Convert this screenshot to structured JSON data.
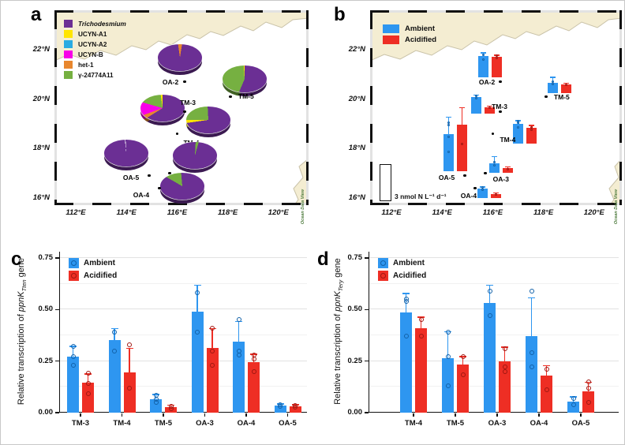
{
  "colors": {
    "taxa": {
      "Trichodesmium": "#6B2F94",
      "UCYN-A1": "#FFE500",
      "UCYN-A2": "#29ABE2",
      "UCYN-B": "#F800E8",
      "het-1": "#E8872E",
      "γ-24774A11": "#76B041",
      "gap": "#FFFFFF"
    },
    "ambient": "#2E96F0",
    "acidified": "#EE2E24",
    "ambient_dark": "#1261A8",
    "acidified_dark": "#9E1712",
    "land": "#F4EDD2",
    "coast": "#C9C2A8",
    "odv_text": "#4C7A3B"
  },
  "chart_data": [
    {
      "type": "map-pie",
      "panel_label": "a",
      "x_ticks": [
        "112°E",
        "114°E",
        "116°E",
        "118°E",
        "120°E"
      ],
      "y_ticks": [
        "22°N",
        "20°N",
        "18°N",
        "16°N"
      ],
      "x_tick_lons": [
        112,
        114,
        116,
        118,
        120
      ],
      "y_tick_lats": [
        22,
        20,
        18,
        16
      ],
      "watermark": "Ocean Data View",
      "legend": [
        {
          "label": "Trichodesmium",
          "taxon": "Trichodesmium",
          "italic": true
        },
        {
          "label": "UCYN-A1",
          "taxon": "UCYN-A1",
          "italic": false
        },
        {
          "label": "UCYN-A2",
          "taxon": "UCYN-A2",
          "italic": false
        },
        {
          "label": "UCYN-B",
          "taxon": "UCYN-B",
          "italic": false
        },
        {
          "label": "het-1",
          "taxon": "het-1",
          "italic": false
        },
        {
          "label": "γ-24774A11",
          "taxon": "γ-24774A11",
          "italic": false
        }
      ],
      "stations": [
        {
          "name": "OA-2",
          "lon": 116.3,
          "lat": 20.7,
          "pie": [
            [
              "het-1",
              0,
              9
            ],
            [
              "Trichodesmium",
              9,
              352
            ],
            [
              "het-1",
              352,
              360
            ]
          ]
        },
        {
          "name": "TM-5",
          "lon": 118.1,
          "lat": 20.1,
          "pie": [
            [
              "Trichodesmium",
              0,
              203
            ],
            [
              "γ-24774A11",
              203,
              356
            ],
            [
              "UCYN-A1",
              356,
              360
            ]
          ]
        },
        {
          "name": "TM-3",
          "lon": 116.3,
          "lat": 19.5,
          "pie": [
            [
              "Trichodesmium",
              0,
              238
            ],
            [
              "het-1",
              238,
              250
            ],
            [
              "UCYN-B",
              250,
              286
            ],
            [
              "γ-24774A11",
              286,
              352
            ],
            [
              "UCYN-A1",
              352,
              360
            ]
          ]
        },
        {
          "name": "TM-4",
          "lon": 116.0,
          "lat": 18.6,
          "pie": [
            [
              "Trichodesmium",
              0,
              262
            ],
            [
              "UCYN-A1",
              262,
              270
            ],
            [
              "γ-24774A11",
              270,
              357
            ],
            [
              "Trichodesmium",
              357,
              360
            ]
          ]
        },
        {
          "name": "OA-5",
          "lon": 114.9,
          "lat": 16.9,
          "pie": [
            [
              "Trichodesmium",
              0,
              354
            ],
            [
              "gap",
              354,
              357
            ],
            [
              "Trichodesmium",
              357,
              360
            ]
          ]
        },
        {
          "name": "OA-3",
          "lon": 115.7,
          "lat": 17.0,
          "pie": [
            [
              "Trichodesmium",
              0,
              3
            ],
            [
              "γ-24774A11",
              3,
              16
            ],
            [
              "Trichodesmium",
              16,
              360
            ]
          ]
        },
        {
          "name": "OA-4",
          "lon": 115.3,
          "lat": 16.4,
          "pie": [
            [
              "Trichodesmium",
              0,
              300
            ],
            [
              "γ-24774A11",
              300,
              355
            ],
            [
              "Trichodesmium",
              355,
              360
            ]
          ]
        }
      ]
    },
    {
      "type": "map-bar",
      "panel_label": "b",
      "x_ticks": [
        "112°E",
        "114°E",
        "116°E",
        "118°E",
        "120°E"
      ],
      "y_ticks": [
        "22°N",
        "20°N",
        "18°N",
        "16°N"
      ],
      "x_tick_lons": [
        112,
        114,
        116,
        118,
        120
      ],
      "y_tick_lats": [
        22,
        20,
        18,
        16
      ],
      "watermark": "Ocean Data View",
      "legend": [
        {
          "label": "Ambient",
          "key": "ambient"
        },
        {
          "label": "Acidified",
          "key": "acidified"
        }
      ],
      "scale_label": "3 nmol N L⁻¹ d⁻¹",
      "scale_value_nmol": 3,
      "unit": "nmol N L⁻¹ d⁻¹",
      "stations": [
        {
          "name": "OA-2",
          "lon": 116.3,
          "lat": 20.7,
          "ambient": {
            "value": 1.8,
            "err_top": 2.1,
            "points": [
              1.5,
              1.9
            ]
          },
          "acidified": {
            "value": 1.7,
            "err_top": 1.9,
            "points": [
              1.6,
              1.8
            ]
          }
        },
        {
          "name": "TM-5",
          "lon": 118.1,
          "lat": 20.1,
          "ambient": {
            "value": 0.9,
            "err_top": 1.4,
            "points": [
              0.8,
              1.0
            ]
          },
          "acidified": {
            "value": 0.75,
            "err_top": 0.9,
            "points": [
              0.7
            ]
          }
        },
        {
          "name": "TM-3",
          "lon": 116.3,
          "lat": 19.5,
          "ambient": {
            "value": 1.45,
            "err_top": 1.65,
            "points": [
              1.3,
              1.5
            ]
          },
          "acidified": {
            "value": 0.55,
            "err_top": 0.7,
            "points": [
              0.5
            ]
          }
        },
        {
          "name": "TM-4",
          "lon": 116.0,
          "lat": 18.6,
          "ambient": {
            "value": 1.7,
            "err_top": 2.0,
            "points": [
              1.4,
              1.8,
              1.9
            ]
          },
          "acidified": {
            "value": 1.35,
            "err_top": 1.6,
            "points": [
              1.2,
              1.4
            ]
          }
        },
        {
          "name": "OA-5",
          "lon": 114.9,
          "lat": 16.9,
          "ambient": {
            "value": 3.1,
            "err_top": 4.6,
            "points": [
              1.6,
              2.9,
              3.9,
              4.1
            ]
          },
          "acidified": {
            "value": 3.9,
            "err_top": 5.4,
            "points": [
              2.3
            ]
          }
        },
        {
          "name": "OA-3",
          "lon": 115.7,
          "lat": 17.0,
          "ambient": {
            "value": 0.8,
            "err_top": 1.4,
            "points": [
              0.6,
              0.9
            ]
          },
          "acidified": {
            "value": 0.35,
            "err_top": 0.5,
            "points": [
              0.3
            ]
          }
        },
        {
          "name": "OA-4",
          "lon": 115.3,
          "lat": 16.4,
          "ambient": {
            "value": 0.8,
            "err_top": 1.0,
            "points": [
              0.7,
              0.9
            ]
          },
          "acidified": {
            "value": 0.35,
            "err_top": 0.5,
            "points": [
              0.3
            ]
          }
        }
      ]
    },
    {
      "type": "bar",
      "panel_label": "c",
      "ylabel": {
        "prefix": "Relative transcription of ",
        "gene": "ppnK",
        "subscript": "Tten",
        "suffix": " gene"
      },
      "categories": [
        "TM-3",
        "TM-4",
        "TM-5",
        "OA-3",
        "OA-4",
        "OA-5"
      ],
      "yticks": [
        "0.00",
        "0.25",
        "0.50",
        "0.75"
      ],
      "ytick_values": [
        0,
        0.25,
        0.5,
        0.75
      ],
      "ylim": [
        0,
        0.78
      ],
      "legend": [
        "Ambient",
        "Acidified"
      ],
      "series": [
        {
          "name": "Ambient",
          "values": [
            0.27,
            0.35,
            0.065,
            0.49,
            0.345,
            0.035
          ],
          "err_top": [
            0.325,
            0.41,
            0.09,
            0.62,
            0.445,
            0.045
          ],
          "points": [
            [
              0.23,
              0.27,
              0.32
            ],
            [
              0.3,
              0.39
            ],
            [
              0.05,
              0.065,
              0.085
            ],
            [
              0.39,
              0.58
            ],
            [
              0.28,
              0.3,
              0.45
            ],
            [
              0.03,
              0.04
            ]
          ]
        },
        {
          "name": "Acidified",
          "values": [
            0.145,
            0.195,
            0.027,
            0.315,
            0.245,
            0.03
          ],
          "err_top": [
            0.19,
            0.315,
            0.04,
            0.41,
            0.285,
            0.042
          ],
          "points": [
            [
              0.09,
              0.14,
              0.19
            ],
            [
              0.12,
              0.33
            ],
            [
              0.02,
              0.03
            ],
            [
              0.23,
              0.3,
              0.41
            ],
            [
              0.2,
              0.26,
              0.28
            ],
            [
              0.025,
              0.035
            ]
          ]
        }
      ]
    },
    {
      "type": "bar",
      "panel_label": "d",
      "ylabel": {
        "prefix": "Relative transcription of ",
        "gene": "ppnK",
        "subscript": "Tery",
        "suffix": " gene"
      },
      "categories": [
        "TM-4",
        "TM-5",
        "OA-3",
        "OA-4",
        "OA-5"
      ],
      "yticks": [
        "0.00",
        "0.25",
        "0.50",
        "0.75"
      ],
      "ytick_values": [
        0,
        0.25,
        0.5,
        0.75
      ],
      "ylim": [
        0,
        0.78
      ],
      "legend": [
        "Ambient",
        "Acidified"
      ],
      "series": [
        {
          "name": "Ambient",
          "values": [
            0.485,
            0.265,
            0.53,
            0.37,
            0.055
          ],
          "err_top": [
            0.58,
            0.395,
            0.62,
            0.56,
            0.08
          ],
          "points": [
            [
              0.37,
              0.54,
              0.55
            ],
            [
              0.13,
              0.27,
              0.39
            ],
            [
              0.47,
              0.59
            ],
            [
              0.22,
              0.29,
              0.59
            ],
            [
              0.04,
              0.07
            ]
          ]
        },
        {
          "name": "Acidified",
          "values": [
            0.41,
            0.235,
            0.25,
            0.18,
            0.105
          ],
          "err_top": [
            0.465,
            0.275,
            0.32,
            0.23,
            0.15
          ],
          "points": [
            [
              0.37,
              0.45
            ],
            [
              0.185,
              0.27
            ],
            [
              0.2,
              0.22,
              0.31
            ],
            [
              0.11,
              0.21
            ],
            [
              0.05,
              0.12,
              0.15
            ]
          ]
        }
      ]
    }
  ]
}
